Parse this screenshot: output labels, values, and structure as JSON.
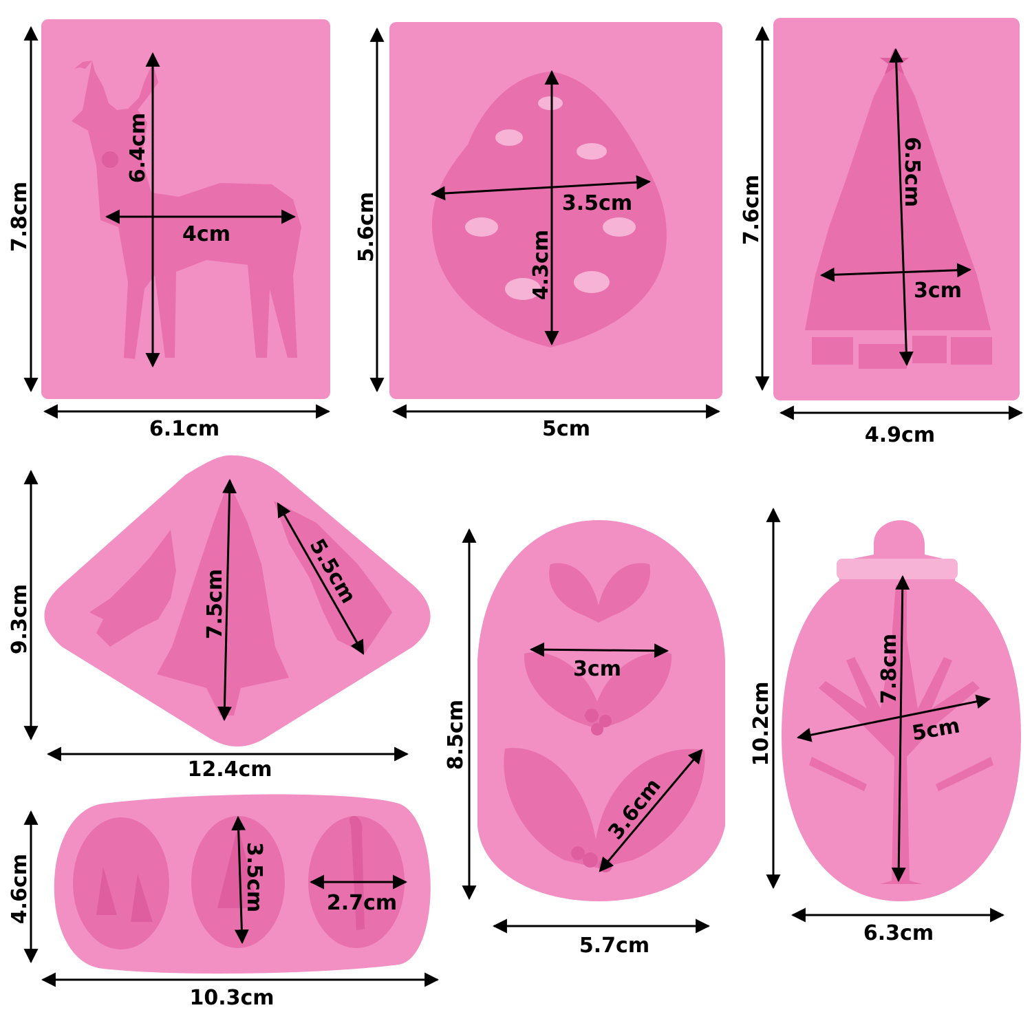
{
  "colors": {
    "mold": "#f28fc3",
    "mold_shadow": "#e870ad",
    "mold_deep": "#de5e9f",
    "highlight": "#f7b3d6",
    "arrow": "#000000",
    "background": "#ffffff"
  },
  "molds": [
    {
      "name": "deer",
      "labels": {
        "height": "7.8cm",
        "width": "6.1cm",
        "figure_height": "6.4cm",
        "figure_width": "4cm"
      }
    },
    {
      "name": "pinecone",
      "labels": {
        "height": "5.6cm",
        "width": "5cm",
        "figure_width": "3.5cm",
        "figure_height": "4.3cm"
      }
    },
    {
      "name": "christmas-tree",
      "labels": {
        "height": "7.6cm",
        "width": "4.9cm",
        "figure_height": "6.5cm",
        "figure_width": "3cm"
      }
    },
    {
      "name": "three-pine-trees",
      "labels": {
        "height": "9.3cm",
        "width": "12.4cm",
        "center_tree": "7.5cm",
        "right_tree": "5.5cm"
      }
    },
    {
      "name": "holly-leaves",
      "labels": {
        "height": "8.5cm",
        "width": "5.7cm",
        "middle_leaves": "3cm",
        "bottom_leaves": "3.6cm"
      }
    },
    {
      "name": "ornament-tree",
      "labels": {
        "height": "10.2cm",
        "width": "6.3cm",
        "tree_height": "7.8cm",
        "tree_width": "5cm"
      }
    },
    {
      "name": "three-ovals",
      "labels": {
        "height": "4.6cm",
        "width": "10.3cm",
        "oval_height": "3.5cm",
        "oval_width": "2.7cm"
      }
    }
  ]
}
